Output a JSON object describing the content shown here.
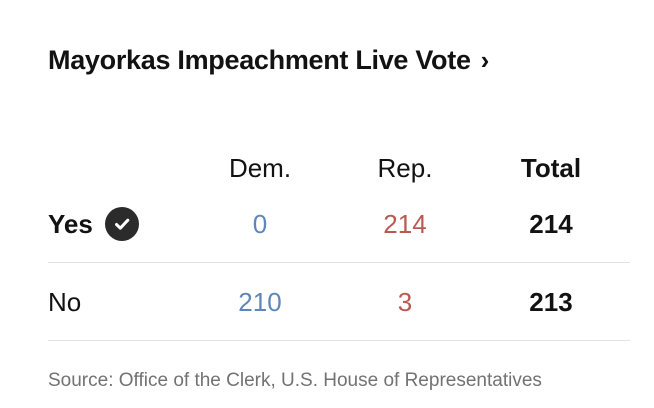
{
  "widget": {
    "title": "Mayorkas Impeachment Live Vote",
    "title_chevron": "›",
    "columns": {
      "dem": "Dem.",
      "rep": "Rep.",
      "total": "Total"
    },
    "rows": [
      {
        "label": "Yes",
        "winner": true,
        "icon": "checkmark-circle-icon",
        "dem": "0",
        "rep": "214",
        "total": "214"
      },
      {
        "label": "No",
        "winner": false,
        "dem": "210",
        "rep": "3",
        "total": "213"
      }
    ],
    "source": "Source: Office of the Clerk, U.S. House of Representatives"
  },
  "colors": {
    "dem": "#5f86b9",
    "rep": "#b85a52",
    "text": "#121212",
    "muted": "#727272",
    "divider": "#e2e2e2",
    "check_bg": "#2b2b2b"
  }
}
